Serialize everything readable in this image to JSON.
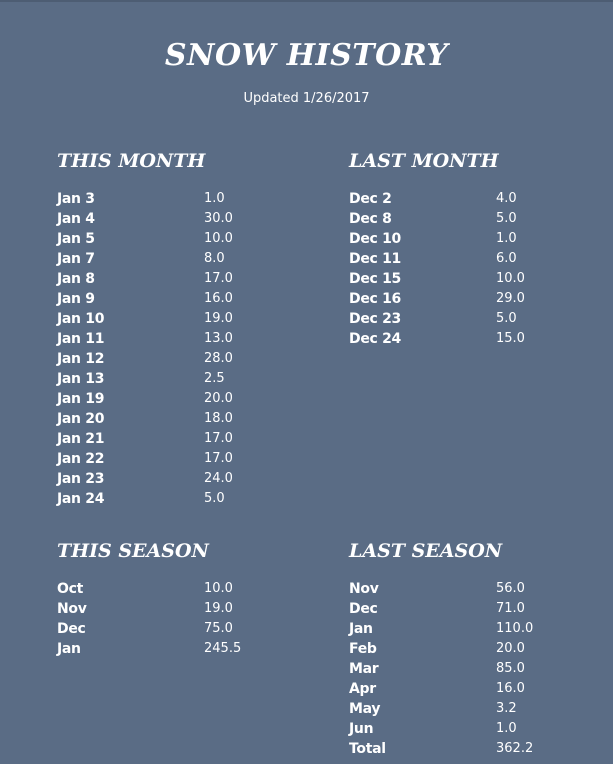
{
  "title": "SNOW HISTORY",
  "updated": "Updated 1/26/2017",
  "sections": [
    {
      "heading": "THIS MONTH",
      "rows": [
        [
          "Jan 3",
          "1.0"
        ],
        [
          "Jan 4",
          "30.0"
        ],
        [
          "Jan 5",
          "10.0"
        ],
        [
          "Jan 7",
          "8.0"
        ],
        [
          "Jan 8",
          "17.0"
        ],
        [
          "Jan 9",
          "16.0"
        ],
        [
          "Jan 10",
          "19.0"
        ],
        [
          "Jan 11",
          "13.0"
        ],
        [
          "Jan 12",
          "28.0"
        ],
        [
          "Jan 13",
          "2.5"
        ],
        [
          "Jan 19",
          "20.0"
        ],
        [
          "Jan 20",
          "18.0"
        ],
        [
          "Jan 21",
          "17.0"
        ],
        [
          "Jan 22",
          "17.0"
        ],
        [
          "Jan 23",
          "24.0"
        ],
        [
          "Jan 24",
          "5.0"
        ]
      ]
    },
    {
      "heading": "LAST MONTH",
      "rows": [
        [
          "Dec 2",
          "4.0"
        ],
        [
          "Dec 8",
          "5.0"
        ],
        [
          "Dec 10",
          "1.0"
        ],
        [
          "Dec 11",
          "6.0"
        ],
        [
          "Dec 15",
          "10.0"
        ],
        [
          "Dec 16",
          "29.0"
        ],
        [
          "Dec 23",
          "5.0"
        ],
        [
          "Dec 24",
          "15.0"
        ]
      ]
    },
    {
      "heading": "THIS SEASON",
      "rows": [
        [
          "Oct",
          "10.0"
        ],
        [
          "Nov",
          "19.0"
        ],
        [
          "Dec",
          "75.0"
        ],
        [
          "Jan",
          "245.5"
        ]
      ]
    },
    {
      "heading": "LAST SEASON",
      "rows": [
        [
          "Nov",
          "56.0"
        ],
        [
          "Dec",
          "71.0"
        ],
        [
          "Jan",
          "110.0"
        ],
        [
          "Feb",
          "20.0"
        ],
        [
          "Mar",
          "85.0"
        ],
        [
          "Apr",
          "16.0"
        ],
        [
          "May",
          "3.2"
        ],
        [
          "Jun",
          "1.0"
        ],
        [
          "Total",
          "362.2"
        ]
      ]
    }
  ],
  "colors": {
    "background": "#5a6c85",
    "text": "#ffffff"
  }
}
